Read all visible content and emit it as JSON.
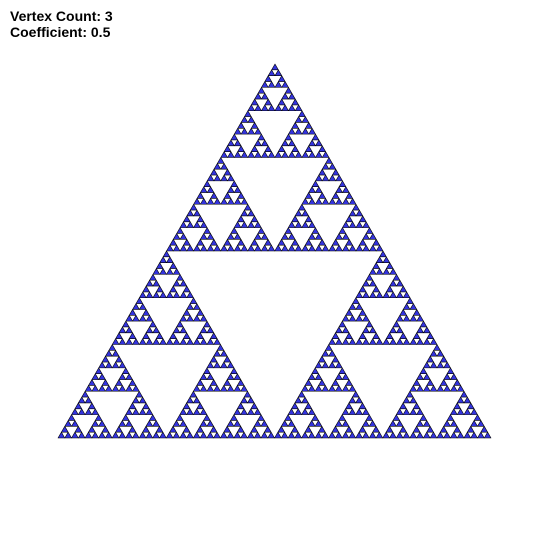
{
  "settings": {
    "vertex_count_label": "Vertex Count:",
    "vertex_count": "3",
    "coefficient_label": "Coefficient:",
    "coefficient": "0.5"
  },
  "render": {
    "fill_color": "#3333dd",
    "outline_color": "#000000",
    "background_color": "#ffffff",
    "recursion_depth": 6
  }
}
